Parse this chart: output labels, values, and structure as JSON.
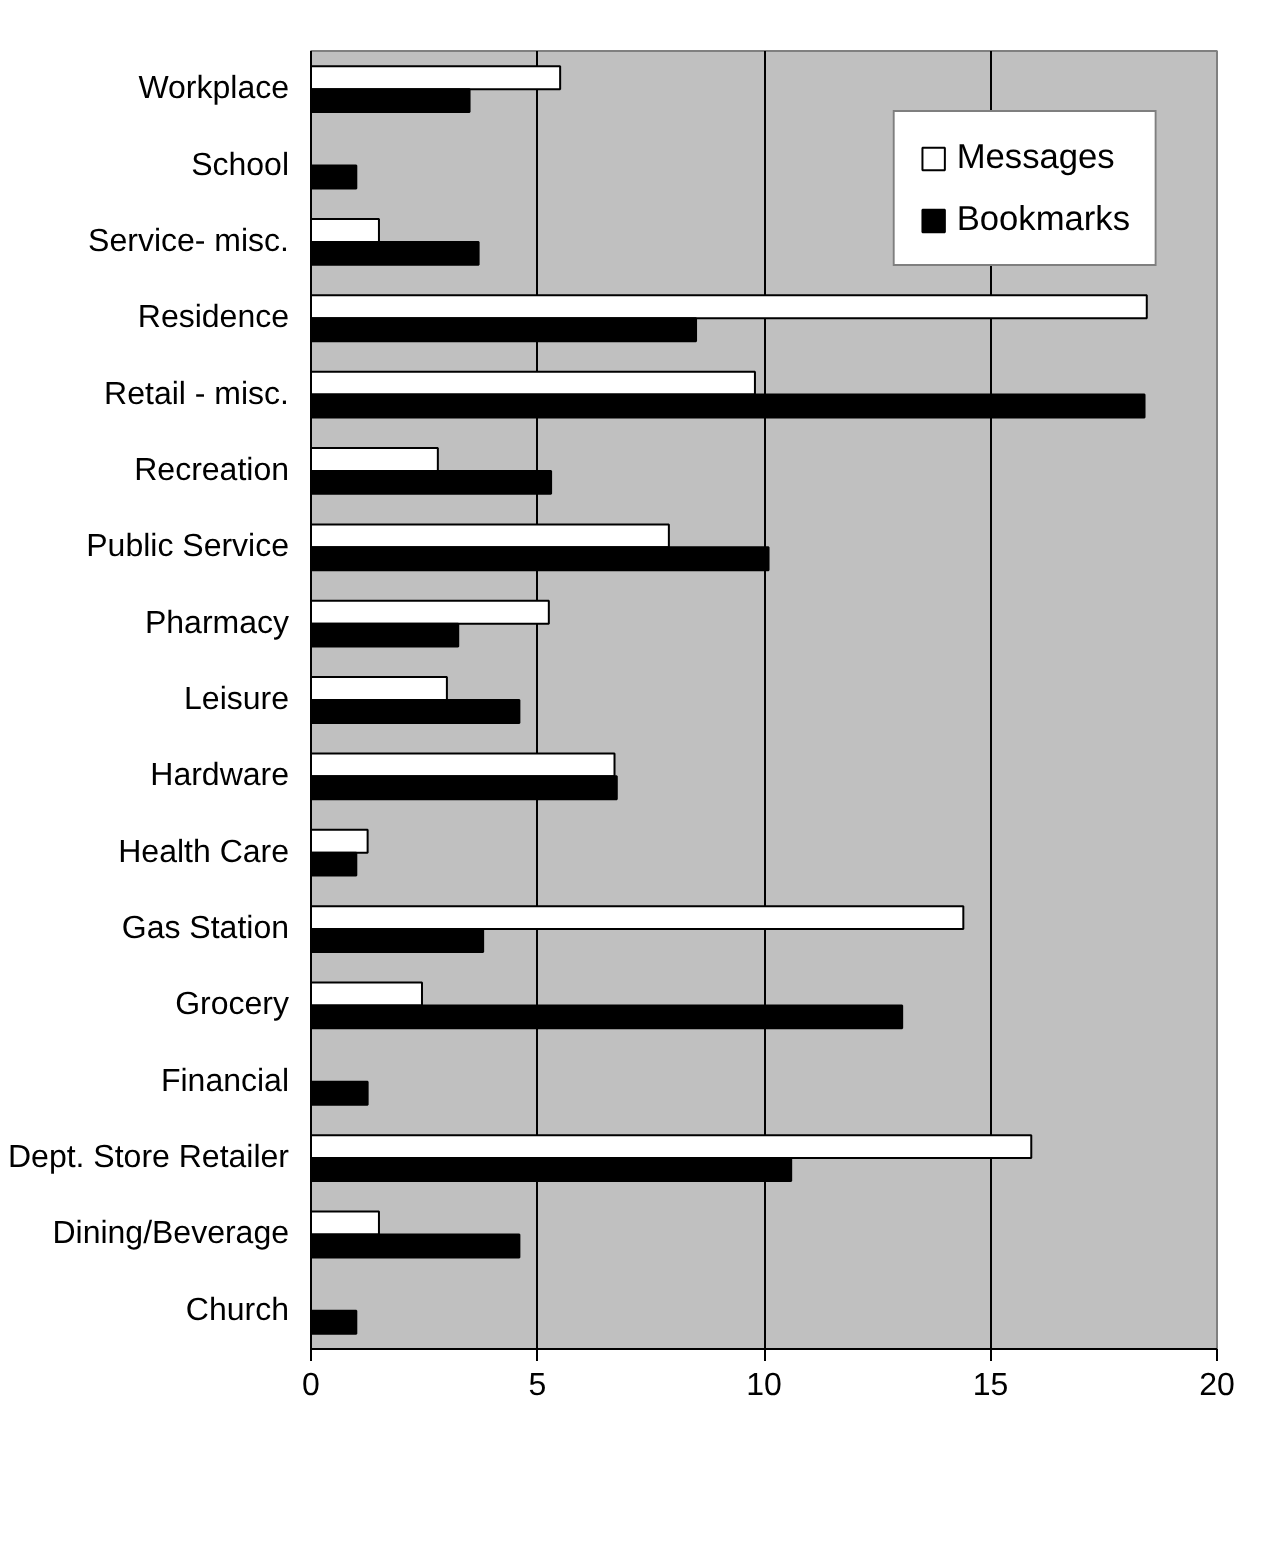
{
  "chart_data": {
    "type": "bar",
    "orientation": "horizontal",
    "categories": [
      "Workplace",
      "School",
      "Service- misc.",
      "Residence",
      "Retail - misc.",
      "Recreation",
      "Public Service",
      "Pharmacy",
      "Leisure",
      "Hardware",
      "Health Care",
      "Gas Station",
      "Grocery",
      "Financial",
      "Dept. Store Retailer",
      "Dining/Beverage",
      "Church"
    ],
    "series": [
      {
        "name": "Messages",
        "color": "#ffffff",
        "values": [
          5.5,
          0,
          1.5,
          18.45,
          9.8,
          2.8,
          7.9,
          5.25,
          3.0,
          6.7,
          1.25,
          14.4,
          2.45,
          0,
          15.9,
          1.5,
          0
        ]
      },
      {
        "name": "Bookmarks",
        "color": "#000000",
        "values": [
          3.5,
          1.0,
          3.7,
          8.5,
          18.4,
          5.3,
          10.1,
          3.25,
          4.6,
          6.75,
          1.0,
          3.8,
          13.05,
          1.25,
          10.6,
          4.6,
          1.0
        ]
      }
    ],
    "xlim": [
      0,
      20
    ],
    "xticks": [
      0,
      5,
      10,
      15,
      20
    ],
    "grid": "x",
    "legend": "top right"
  }
}
